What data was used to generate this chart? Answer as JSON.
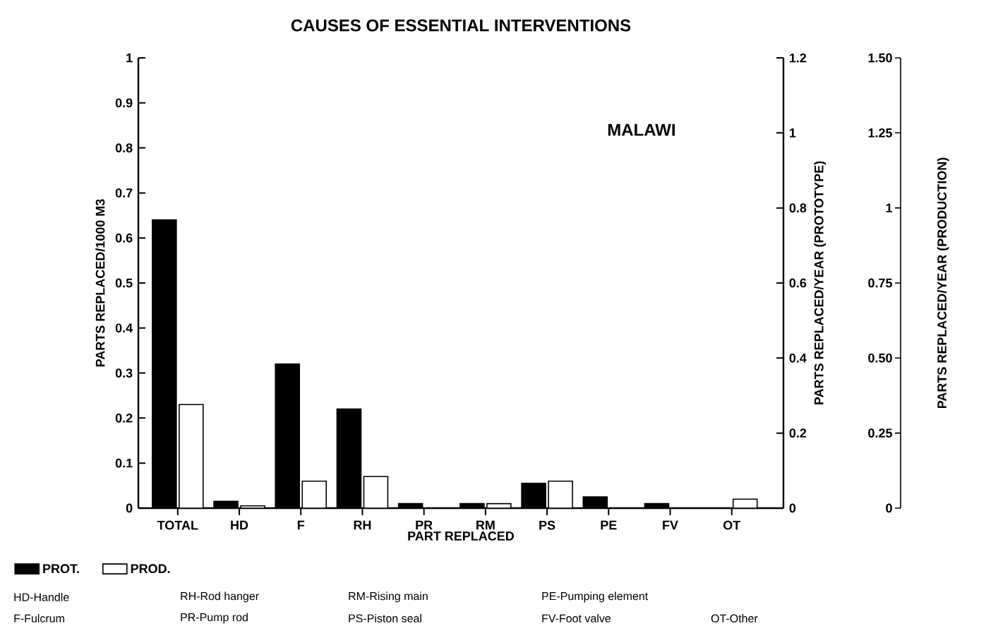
{
  "chart_data": {
    "type": "bar",
    "title": "CAUSES OF ESSENTIAL INTERVENTIONS",
    "categories": [
      "TOTAL",
      "HD",
      "F",
      "RH",
      "PR",
      "RM",
      "PS",
      "PE",
      "FV",
      "OT"
    ],
    "series": [
      {
        "name": "PROT.",
        "color": "#000000",
        "values": [
          0.64,
          0.015,
          0.32,
          0.22,
          0.01,
          0.01,
          0.055,
          0.025,
          0.01,
          null
        ]
      },
      {
        "name": "PROD.",
        "color": "#ffffff",
        "values": [
          0.23,
          0.005,
          0.06,
          0.07,
          null,
          0.01,
          0.06,
          null,
          null,
          0.02
        ]
      }
    ],
    "xlabel": "PART REPLACED",
    "ylabel": "PARTS REPLACED/1000 M3",
    "y2label": "PARTS REPLACED/YEAR (PROTOTYPE)",
    "y3label": "PARTS REPLACED/YEAR (PRODUCTION)",
    "ylim": [
      0,
      1
    ],
    "yticks": [
      0,
      0.1,
      0.2,
      0.3,
      0.4,
      0.5,
      0.6,
      0.7,
      0.8,
      0.9,
      1
    ],
    "y2lim": [
      0,
      1.2
    ],
    "y2ticks": [
      0,
      0.2,
      0.4,
      0.6,
      0.8,
      1,
      1.2
    ],
    "y3lim": [
      0,
      1.5
    ],
    "y3ticks": [
      0,
      {
        "value": 0.25,
        "label": "0.25"
      },
      {
        "value": 0.5,
        "label": "0.50"
      },
      0.75,
      1,
      1.25,
      {
        "value": 1.5,
        "label": "1.50"
      }
    ],
    "legend": "bottom left",
    "grid": false,
    "annotations": [
      "MALAWI",
      "HD-Handle",
      "RH-Rod hanger",
      "RM-Rising main",
      "PE-Pumping element",
      "F-Fulcrum",
      "PR-Pump rod",
      "PS-Piston seal",
      "FV-Foot valve",
      "OT-Other"
    ]
  }
}
